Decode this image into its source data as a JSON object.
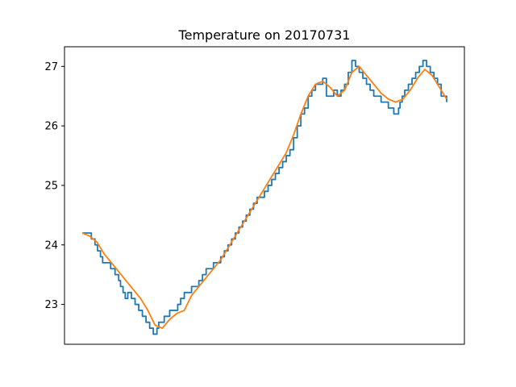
{
  "chart_data": {
    "type": "line",
    "title": "Temperature on 20170731",
    "xlabel": "",
    "ylabel": "",
    "x_ticks_visible": false,
    "grid": false,
    "legend": "none",
    "xlim": [
      0,
      1
    ],
    "ylim": [
      22.33,
      27.33
    ],
    "y_ticks": [
      "23",
      "24",
      "25",
      "26",
      "27"
    ],
    "y_tick_values": [
      23,
      24,
      25,
      26,
      27
    ],
    "colors": {
      "raw": "#1f77b4",
      "smoothed": "#ff7f0e",
      "axes": "#000000",
      "background": "#ffffff"
    },
    "series": [
      {
        "style": "step",
        "x": [
          0.0,
          0.018,
          0.025,
          0.035,
          0.042,
          0.05,
          0.056,
          0.07,
          0.078,
          0.085,
          0.09,
          0.1,
          0.105,
          0.112,
          0.118,
          0.125,
          0.135,
          0.145,
          0.155,
          0.165,
          0.175,
          0.185,
          0.195,
          0.205,
          0.21,
          0.218,
          0.225,
          0.232,
          0.24,
          0.248,
          0.255,
          0.262,
          0.27,
          0.28,
          0.29,
          0.3,
          0.31,
          0.32,
          0.33,
          0.34,
          0.35,
          0.36,
          0.37,
          0.38,
          0.39,
          0.4,
          0.41,
          0.42,
          0.43,
          0.44,
          0.45,
          0.46,
          0.47,
          0.48,
          0.49,
          0.5,
          0.51,
          0.52,
          0.53,
          0.54,
          0.55,
          0.56,
          0.57,
          0.58,
          0.59,
          0.6,
          0.61,
          0.62,
          0.63,
          0.64,
          0.65,
          0.66,
          0.67,
          0.68,
          0.69,
          0.7,
          0.71,
          0.72,
          0.73,
          0.74,
          0.75,
          0.76,
          0.77,
          0.78,
          0.79,
          0.795,
          0.8,
          0.805,
          0.812,
          0.82,
          0.83,
          0.84,
          0.85,
          0.855,
          0.858,
          0.862,
          0.868,
          0.872,
          0.878,
          0.885,
          0.895,
          0.905,
          0.915,
          0.925,
          0.935,
          0.945,
          0.955,
          0.965,
          0.975,
          0.985,
          1.0
        ],
        "values": [
          24.2,
          24.2,
          24.1,
          24.0,
          23.9,
          23.8,
          23.7,
          23.7,
          23.6,
          23.6,
          23.5,
          23.4,
          23.3,
          23.2,
          23.1,
          23.2,
          23.1,
          23.0,
          22.9,
          22.8,
          22.7,
          22.6,
          22.5,
          22.6,
          22.7,
          22.7,
          22.8,
          22.8,
          22.9,
          22.9,
          22.9,
          23.0,
          23.1,
          23.2,
          23.2,
          23.3,
          23.3,
          23.4,
          23.5,
          23.6,
          23.6,
          23.7,
          23.7,
          23.8,
          23.9,
          24.0,
          24.1,
          24.2,
          24.3,
          24.4,
          24.5,
          24.6,
          24.7,
          24.8,
          24.8,
          24.9,
          25.0,
          25.1,
          25.2,
          25.3,
          25.4,
          25.5,
          25.6,
          25.8,
          26.0,
          26.2,
          26.3,
          26.5,
          26.6,
          26.7,
          26.7,
          26.8,
          26.5,
          26.5,
          26.6,
          26.5,
          26.6,
          26.7,
          26.9,
          27.1,
          27.0,
          26.9,
          26.8,
          26.7,
          26.6,
          26.6,
          26.5,
          26.5,
          26.5,
          26.4,
          26.4,
          26.3,
          26.3,
          26.2,
          26.2,
          26.2,
          26.3,
          26.4,
          26.5,
          26.6,
          26.7,
          26.8,
          26.9,
          27.0,
          27.1,
          27.0,
          26.9,
          26.8,
          26.7,
          26.5,
          26.4
        ]
      },
      {
        "style": "smooth",
        "x": [
          0.0,
          0.02,
          0.04,
          0.06,
          0.08,
          0.1,
          0.12,
          0.14,
          0.16,
          0.18,
          0.2,
          0.22,
          0.24,
          0.26,
          0.28,
          0.3,
          0.32,
          0.34,
          0.36,
          0.38,
          0.4,
          0.42,
          0.44,
          0.46,
          0.48,
          0.5,
          0.52,
          0.54,
          0.56,
          0.58,
          0.6,
          0.62,
          0.64,
          0.66,
          0.68,
          0.7,
          0.72,
          0.74,
          0.76,
          0.78,
          0.8,
          0.82,
          0.84,
          0.86,
          0.88,
          0.9,
          0.92,
          0.94,
          0.96,
          0.98,
          1.0
        ],
        "values": [
          24.2,
          24.15,
          24.05,
          23.85,
          23.7,
          23.55,
          23.4,
          23.25,
          23.1,
          22.9,
          22.65,
          22.6,
          22.75,
          22.85,
          22.9,
          23.15,
          23.3,
          23.45,
          23.6,
          23.75,
          23.95,
          24.15,
          24.35,
          24.55,
          24.75,
          24.95,
          25.15,
          25.35,
          25.55,
          25.85,
          26.2,
          26.5,
          26.7,
          26.75,
          26.65,
          26.5,
          26.6,
          26.9,
          27.0,
          26.85,
          26.7,
          26.55,
          26.45,
          26.4,
          26.45,
          26.6,
          26.8,
          26.95,
          26.85,
          26.65,
          26.45
        ]
      }
    ]
  }
}
